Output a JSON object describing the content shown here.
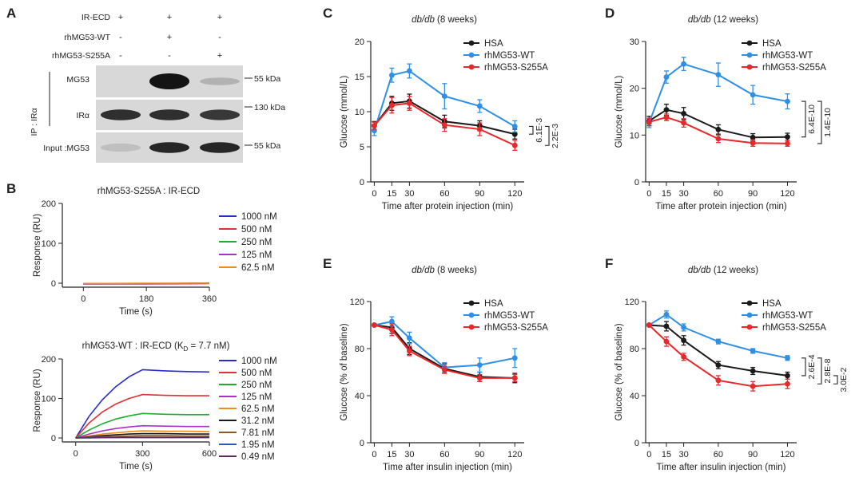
{
  "panels": {
    "A": {
      "letter": "A",
      "rows": [
        {
          "label": "IR-ECD",
          "marks": [
            "+",
            "+",
            "+"
          ]
        },
        {
          "label": "rhMG53-WT",
          "marks": [
            "-",
            "+",
            "-"
          ]
        },
        {
          "label": "rhMG53-S255A",
          "marks": [
            "-",
            "-",
            "+"
          ]
        }
      ],
      "ip_label": "IP : IRα",
      "blots": [
        {
          "label": "MG53",
          "marker": "55 kDa",
          "bands": [
            0.0,
            1.0,
            0.12
          ]
        },
        {
          "label": "IRα",
          "marker": "130 kDa",
          "bands": [
            0.85,
            0.85,
            0.8
          ]
        },
        {
          "label": "Input :MG53",
          "marker": "55 kDa",
          "bands": [
            0.05,
            0.9,
            0.9
          ]
        }
      ]
    },
    "B": {
      "letter": "B"
    },
    "C": {
      "letter": "C"
    },
    "D": {
      "letter": "D"
    },
    "E": {
      "letter": "E"
    },
    "F": {
      "letter": "F"
    }
  },
  "colors": {
    "HSA": "#1a1a1a",
    "WT": "#2e8fe6",
    "S255A": "#e8282a"
  },
  "chart_data": [
    {
      "id": "B_top",
      "type": "line",
      "title": "rhMG53-S255A : IR-ECD",
      "xlabel": "Time (s)",
      "ylabel": "Response (RU)",
      "xlim": [
        -60,
        360
      ],
      "ylim": [
        -10,
        200
      ],
      "xticks": [
        0,
        180,
        360
      ],
      "yticks": [
        0,
        100,
        200
      ],
      "series": [
        {
          "name": "1000 nM",
          "color": "#2a2ad0",
          "x": [
            0,
            180,
            360
          ],
          "y": [
            -2,
            -1,
            0
          ]
        },
        {
          "name": "500 nM",
          "color": "#e03030",
          "x": [
            0,
            180,
            360
          ],
          "y": [
            -2,
            -2,
            -1
          ]
        },
        {
          "name": "250 nM",
          "color": "#1fae2c",
          "x": [
            0,
            180,
            360
          ],
          "y": [
            -1,
            -1,
            0
          ]
        },
        {
          "name": "125 nM",
          "color": "#a832c8",
          "x": [
            0,
            180,
            360
          ],
          "y": [
            -1,
            -1,
            0
          ]
        },
        {
          "name": "62.5 nM",
          "color": "#f08c1a",
          "x": [
            0,
            180,
            360
          ],
          "y": [
            -1,
            0,
            0
          ]
        }
      ]
    },
    {
      "id": "B_bottom",
      "type": "line",
      "title_prefix": "rhMG53-WT : IR-ECD (K",
      "title_sub": "D",
      "title_suffix": " = 7.7 nM)",
      "xlabel": "Time (s)",
      "ylabel": "Response (RU)",
      "xlim": [
        -60,
        600
      ],
      "ylim": [
        -10,
        200
      ],
      "xticks": [
        0,
        300,
        600
      ],
      "yticks": [
        0,
        100,
        200
      ],
      "series": [
        {
          "name": "1000 nM",
          "color": "#2a2ad0",
          "x": [
            0,
            60,
            120,
            180,
            240,
            300,
            400,
            500,
            600
          ],
          "y": [
            0,
            55,
            97,
            130,
            155,
            173,
            170,
            168,
            167
          ]
        },
        {
          "name": "500 nM",
          "color": "#e03030",
          "x": [
            0,
            60,
            120,
            180,
            240,
            300,
            400,
            500,
            600
          ],
          "y": [
            0,
            38,
            66,
            86,
            100,
            110,
            108,
            107,
            107
          ]
        },
        {
          "name": "250 nM",
          "color": "#1fae2c",
          "x": [
            0,
            60,
            120,
            180,
            240,
            300,
            400,
            500,
            600
          ],
          "y": [
            0,
            20,
            36,
            48,
            56,
            62,
            60,
            59,
            59
          ]
        },
        {
          "name": "125 nM",
          "color": "#a832c8",
          "x": [
            0,
            60,
            120,
            180,
            240,
            300,
            400,
            500,
            600
          ],
          "y": [
            0,
            10,
            18,
            24,
            28,
            31,
            30,
            29,
            29
          ]
        },
        {
          "name": "62.5 nM",
          "color": "#f08c1a",
          "x": [
            0,
            60,
            120,
            180,
            240,
            300,
            400,
            500,
            600
          ],
          "y": [
            0,
            5,
            10,
            13,
            16,
            18,
            17,
            17,
            16
          ]
        },
        {
          "name": "31.2 nM",
          "color": "#1a1a1a",
          "x": [
            0,
            60,
            120,
            180,
            240,
            300,
            400,
            500,
            600
          ],
          "y": [
            0,
            3,
            6,
            8,
            10,
            11,
            11,
            10,
            10
          ]
        },
        {
          "name": "7.81 nM",
          "color": "#8a5a2a",
          "x": [
            0,
            60,
            120,
            180,
            240,
            300,
            400,
            500,
            600
          ],
          "y": [
            0,
            2,
            3,
            4,
            5,
            6,
            6,
            5,
            5
          ]
        },
        {
          "name": "1.95 nM",
          "color": "#2a5ab8",
          "x": [
            0,
            60,
            120,
            180,
            240,
            300,
            400,
            500,
            600
          ],
          "y": [
            0,
            1,
            1,
            2,
            2,
            2,
            2,
            2,
            2
          ]
        },
        {
          "name": "0.49 nM",
          "color": "#5a2a5a",
          "x": [
            0,
            60,
            120,
            180,
            240,
            300,
            400,
            500,
            600
          ],
          "y": [
            0,
            0,
            1,
            1,
            1,
            1,
            1,
            1,
            1
          ]
        }
      ]
    },
    {
      "id": "C",
      "type": "line",
      "title_italic": "db/db",
      "title_rest": " (8 weeks)",
      "xlabel": "Time after protein injection (min)",
      "ylabel": "Glucose (mmol/L)",
      "xlim": [
        -3,
        128
      ],
      "ylim": [
        0,
        20
      ],
      "xticks": [
        0,
        15,
        30,
        60,
        90,
        120
      ],
      "yticks": [
        0,
        5,
        10,
        15,
        20
      ],
      "x": [
        0,
        15,
        30,
        60,
        90,
        120
      ],
      "series": [
        {
          "name": "HSA",
          "key": "HSA",
          "y": [
            8.0,
            11.2,
            11.5,
            8.6,
            8.0,
            6.8
          ],
          "err": [
            0.6,
            1.0,
            1.0,
            0.9,
            0.7,
            0.7
          ]
        },
        {
          "name": "rhMG53-WT",
          "key": "WT",
          "y": [
            7.3,
            15.2,
            15.8,
            12.2,
            10.8,
            7.9
          ],
          "err": [
            0.7,
            1.0,
            1.0,
            1.8,
            0.9,
            0.8
          ]
        },
        {
          "name": "rhMG53-S255A",
          "key": "S255A",
          "y": [
            8.0,
            10.9,
            11.2,
            8.1,
            7.5,
            5.2
          ],
          "err": [
            0.5,
            1.1,
            1.0,
            0.9,
            0.9,
            0.7
          ]
        }
      ],
      "brackets": [
        {
          "label": "6.1E-3",
          "y1": 7.9,
          "y2": 6.8
        },
        {
          "label": "2.2E-3",
          "y1": 7.9,
          "y2": 5.2
        }
      ]
    },
    {
      "id": "D",
      "type": "line",
      "title_italic": "db/db",
      "title_rest": " (12 weeks)",
      "xlabel": "Time after protein injection (min)",
      "ylabel": "Glucose (mmol/L)",
      "xlim": [
        -3,
        128
      ],
      "ylim": [
        0,
        30
      ],
      "xticks": [
        0,
        15,
        30,
        60,
        90,
        120
      ],
      "yticks": [
        0,
        10,
        20,
        30
      ],
      "x": [
        0,
        15,
        30,
        60,
        90,
        120
      ],
      "series": [
        {
          "name": "HSA",
          "key": "HSA",
          "y": [
            13.0,
            15.4,
            14.6,
            11.2,
            9.5,
            9.6
          ],
          "err": [
            1.0,
            1.2,
            1.3,
            1.0,
            0.8,
            0.8
          ]
        },
        {
          "name": "rhMG53-WT",
          "key": "WT",
          "y": [
            12.6,
            22.4,
            25.2,
            22.9,
            18.6,
            17.2
          ],
          "err": [
            1.0,
            1.3,
            1.4,
            2.5,
            2.0,
            1.6
          ]
        },
        {
          "name": "rhMG53-S255A",
          "key": "S255A",
          "y": [
            12.8,
            13.8,
            12.6,
            9.2,
            8.3,
            8.2
          ],
          "err": [
            0.8,
            0.7,
            0.9,
            0.8,
            0.7,
            0.6
          ]
        }
      ],
      "brackets": [
        {
          "label": "6.4E-10",
          "y1": 17.2,
          "y2": 9.6
        },
        {
          "label": "1.4E-10",
          "y1": 17.2,
          "y2": 8.2
        }
      ]
    },
    {
      "id": "E",
      "type": "line",
      "title_italic": "db/db",
      "title_rest": " (8 weeks)",
      "xlabel": "Time after insulin injection (min)",
      "ylabel": "Glucose (% of baseline)",
      "xlim": [
        -3,
        128
      ],
      "ylim": [
        0,
        120
      ],
      "xticks": [
        0,
        15,
        30,
        60,
        90,
        120
      ],
      "yticks": [
        0,
        40,
        80,
        120
      ],
      "x": [
        0,
        15,
        30,
        60,
        90,
        120
      ],
      "series": [
        {
          "name": "HSA",
          "key": "HSA",
          "y": [
            100,
            98,
            80,
            63,
            56,
            55
          ],
          "err": [
            0,
            5,
            5,
            4,
            4,
            4
          ]
        },
        {
          "name": "rhMG53-WT",
          "key": "WT",
          "y": [
            100,
            103,
            89,
            64,
            66,
            72
          ],
          "err": [
            0,
            4,
            5,
            4,
            6,
            8
          ]
        },
        {
          "name": "rhMG53-S255A",
          "key": "S255A",
          "y": [
            100,
            96,
            78,
            62,
            55,
            55
          ],
          "err": [
            0,
            5,
            4,
            3,
            3,
            3
          ]
        }
      ],
      "brackets": []
    },
    {
      "id": "F",
      "type": "line",
      "title_italic": "db/db",
      "title_rest": " (12 weeks)",
      "xlabel": "Time after insulin injection (min)",
      "ylabel": "Glucose (% of baseline)",
      "xlim": [
        -3,
        128
      ],
      "ylim": [
        0,
        120
      ],
      "xticks": [
        0,
        15,
        30,
        60,
        90,
        120
      ],
      "yticks": [
        0,
        40,
        80,
        120
      ],
      "x": [
        0,
        15,
        30,
        60,
        90,
        120
      ],
      "series": [
        {
          "name": "HSA",
          "key": "HSA",
          "y": [
            100,
            99,
            87,
            66,
            61,
            57
          ],
          "err": [
            0,
            4,
            4,
            3,
            3,
            3
          ]
        },
        {
          "name": "rhMG53-WT",
          "key": "WT",
          "y": [
            100,
            109,
            98,
            86,
            78,
            72
          ],
          "err": [
            0,
            3,
            3,
            2,
            2,
            2
          ]
        },
        {
          "name": "rhMG53-S255A",
          "key": "S255A",
          "y": [
            100,
            86,
            73,
            53,
            48,
            50
          ],
          "err": [
            0,
            4,
            3,
            4,
            4,
            4
          ]
        }
      ],
      "brackets": [
        {
          "label": "2.6E-4",
          "y1": 72,
          "y2": 57
        },
        {
          "label": "2.8E-8",
          "y1": 72,
          "y2": 50
        },
        {
          "label": "3.0E-2",
          "y1": 57,
          "y2": 50
        }
      ]
    }
  ]
}
